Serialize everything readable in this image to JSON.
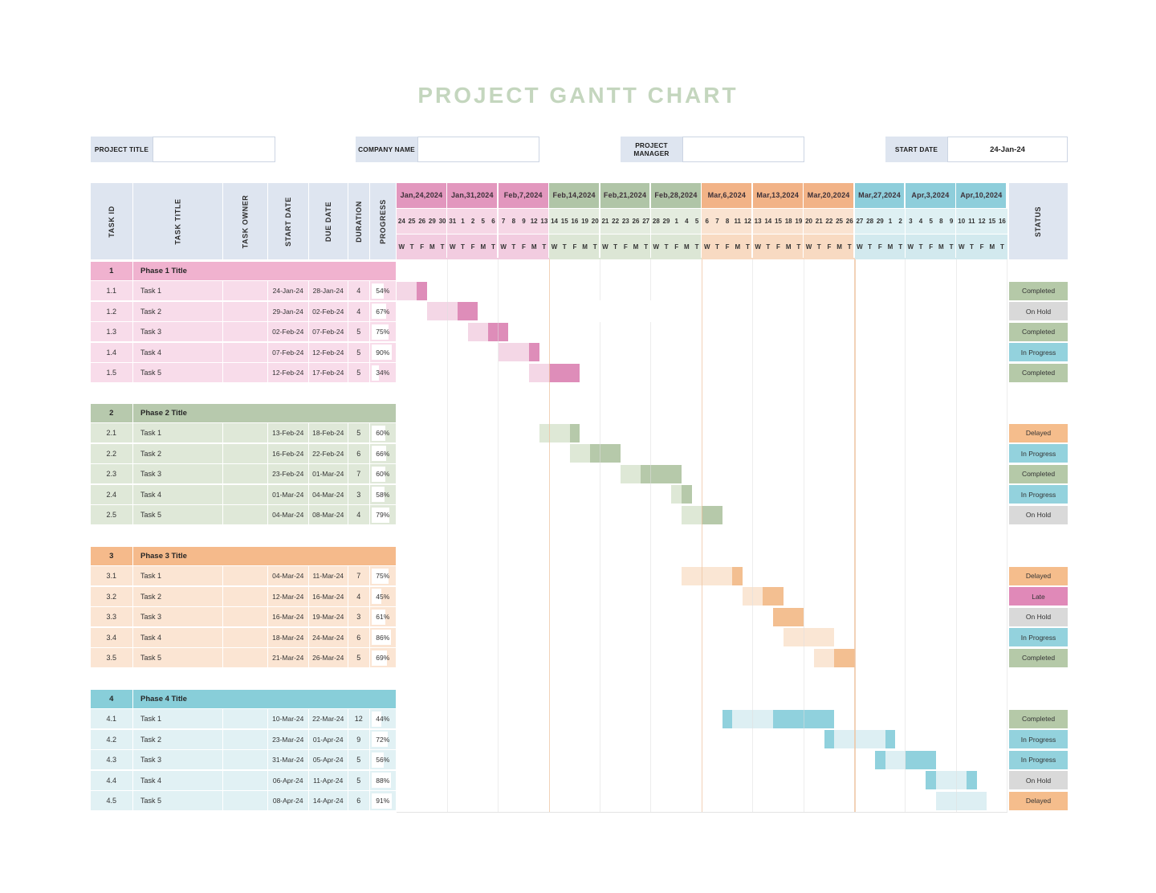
{
  "title": "PROJECT GANTT CHART",
  "info_fields": [
    {
      "label": "PROJECT TITLE",
      "value": ""
    },
    {
      "label": "COMPANY NAME",
      "value": ""
    },
    {
      "label": "PROJECT MANAGER",
      "value": ""
    },
    {
      "label": "START DATE",
      "value": "24-Jan-24"
    }
  ],
  "table": {
    "headers": [
      "TASK ID",
      "TASK TITLE",
      "TASK OWNER",
      "START DATE",
      "DUE DATE",
      "DURATION",
      "PROGRESS"
    ],
    "status_header": "STATUS"
  },
  "timeline": {
    "day_letters": [
      "W",
      "T",
      "F",
      "M",
      "T"
    ],
    "weeks": [
      {
        "label": "Jan,24,2024",
        "days": [
          "24",
          "25",
          "26",
          "29",
          "30"
        ],
        "theme": "pink"
      },
      {
        "label": "Jan,31,2024",
        "days": [
          "31",
          "1",
          "2",
          "5",
          "6"
        ],
        "theme": "pink"
      },
      {
        "label": "Feb,7,2024",
        "days": [
          "7",
          "8",
          "9",
          "12",
          "13"
        ],
        "theme": "pink"
      },
      {
        "label": "Feb,14,2024",
        "days": [
          "14",
          "15",
          "16",
          "19",
          "20"
        ],
        "theme": "green"
      },
      {
        "label": "Feb,21,2024",
        "days": [
          "21",
          "22",
          "23",
          "26",
          "27"
        ],
        "theme": "green"
      },
      {
        "label": "Feb,28,2024",
        "days": [
          "28",
          "29",
          "1",
          "4",
          "5"
        ],
        "theme": "green"
      },
      {
        "label": "Mar,6,2024",
        "days": [
          "6",
          "7",
          "8",
          "11",
          "12"
        ],
        "theme": "orange"
      },
      {
        "label": "Mar,13,2024",
        "days": [
          "13",
          "14",
          "15",
          "18",
          "19"
        ],
        "theme": "orange"
      },
      {
        "label": "Mar,20,2024",
        "days": [
          "20",
          "21",
          "22",
          "25",
          "26"
        ],
        "theme": "orange"
      },
      {
        "label": "Mar,27,2024",
        "days": [
          "27",
          "28",
          "29",
          "1",
          "2"
        ],
        "theme": "teal"
      },
      {
        "label": "Apr,3,2024",
        "days": [
          "3",
          "4",
          "5",
          "8",
          "9"
        ],
        "theme": "teal"
      },
      {
        "label": "Apr,10,2024",
        "days": [
          "10",
          "11",
          "12",
          "15",
          "16"
        ],
        "theme": "teal"
      }
    ]
  },
  "themes": {
    "pink": {
      "week_header": "#e297be",
      "date_row": "#f6d7e6",
      "day_row": "#f2cce0",
      "phase_header": "#f0b2cf",
      "row": "#f8dcea",
      "bar_light": "#f4d7e6",
      "bar_dark": "#de8db9"
    },
    "green": {
      "week_header": "#b0c5a7",
      "date_row": "#e4ecdf",
      "day_row": "#dce6d5",
      "phase_header": "#b7c9ad",
      "row": "#dfe8d8",
      "bar_light": "#dee8d6",
      "bar_dark": "#b6c9aa"
    },
    "orange": {
      "week_header": "#f2b387",
      "date_row": "#fae3d1",
      "day_row": "#f8dac2",
      "phase_header": "#f5ba8b",
      "row": "#fbe5d3",
      "bar_light": "#fae6d4",
      "bar_dark": "#f3bf91"
    },
    "teal": {
      "week_header": "#8ecedb",
      "date_row": "#def0f3",
      "day_row": "#d2e9ee",
      "phase_header": "#88ced9",
      "row": "#e1f1f4",
      "bar_light": "#ddeff3",
      "bar_dark": "#90d1dd"
    }
  },
  "status_colors": {
    "Completed": "#b5c9a8",
    "On Hold": "#d9d9d9",
    "In Progress": "#93d2dd",
    "Delayed": "#f5bd8c",
    "Late": "#e089b8"
  },
  "chart_data": {
    "type": "gantt",
    "x_axis": "workday timeline Jan 24 2024 - Apr 16 2024, 12 weeks x 5 weekdays (W T F M T)",
    "phases": [
      {
        "id": "1",
        "title": "Phase 1 Title",
        "theme": "pink",
        "tasks": [
          {
            "id": "1.1",
            "title": "Task 1",
            "owner": "",
            "start": "24-Jan-24",
            "due": "28-Jan-24",
            "duration": "4",
            "progress": "54%",
            "status": "Completed",
            "bar": [
              [
                0,
                2,
                "light"
              ],
              [
                2,
                1,
                "dark"
              ]
            ]
          },
          {
            "id": "1.2",
            "title": "Task 2",
            "owner": "",
            "start": "29-Jan-24",
            "due": "02-Feb-24",
            "duration": "4",
            "progress": "67%",
            "status": "On Hold",
            "bar": [
              [
                3,
                3,
                "light"
              ],
              [
                6,
                2,
                "dark"
              ]
            ]
          },
          {
            "id": "1.3",
            "title": "Task 3",
            "owner": "",
            "start": "02-Feb-24",
            "due": "07-Feb-24",
            "duration": "5",
            "progress": "75%",
            "status": "Completed",
            "bar": [
              [
                7,
                2,
                "light"
              ],
              [
                9,
                2,
                "dark"
              ]
            ]
          },
          {
            "id": "1.4",
            "title": "Task 4",
            "owner": "",
            "start": "07-Feb-24",
            "due": "12-Feb-24",
            "duration": "5",
            "progress": "90%",
            "status": "In Progress",
            "bar": [
              [
                10,
                3,
                "light"
              ],
              [
                13,
                1,
                "dark"
              ]
            ]
          },
          {
            "id": "1.5",
            "title": "Task 5",
            "owner": "",
            "start": "12-Feb-24",
            "due": "17-Feb-24",
            "duration": "5",
            "progress": "34%",
            "status": "Completed",
            "bar": [
              [
                13,
                2,
                "light"
              ],
              [
                15,
                3,
                "dark"
              ]
            ]
          }
        ]
      },
      {
        "id": "2",
        "title": "Phase 2 Title",
        "theme": "green",
        "tasks": [
          {
            "id": "2.1",
            "title": "Task 1",
            "owner": "",
            "start": "13-Feb-24",
            "due": "18-Feb-24",
            "duration": "5",
            "progress": "60%",
            "status": "Delayed",
            "bar": [
              [
                14,
                3,
                "light"
              ],
              [
                17,
                1,
                "dark"
              ]
            ]
          },
          {
            "id": "2.2",
            "title": "Task 2",
            "owner": "",
            "start": "16-Feb-24",
            "due": "22-Feb-24",
            "duration": "6",
            "progress": "66%",
            "status": "In Progress",
            "bar": [
              [
                17,
                2,
                "light"
              ],
              [
                19,
                3,
                "dark"
              ]
            ]
          },
          {
            "id": "2.3",
            "title": "Task 3",
            "owner": "",
            "start": "23-Feb-24",
            "due": "01-Mar-24",
            "duration": "7",
            "progress": "60%",
            "status": "Completed",
            "bar": [
              [
                22,
                2,
                "light"
              ],
              [
                24,
                4,
                "dark"
              ]
            ]
          },
          {
            "id": "2.4",
            "title": "Task 4",
            "owner": "",
            "start": "01-Mar-24",
            "due": "04-Mar-24",
            "duration": "3",
            "progress": "58%",
            "status": "In Progress",
            "bar": [
              [
                27,
                1,
                "light"
              ],
              [
                28,
                1,
                "dark"
              ]
            ]
          },
          {
            "id": "2.5",
            "title": "Task 5",
            "owner": "",
            "start": "04-Mar-24",
            "due": "08-Mar-24",
            "duration": "4",
            "progress": "79%",
            "status": "On Hold",
            "bar": [
              [
                28,
                2,
                "light"
              ],
              [
                30,
                2,
                "dark"
              ]
            ]
          }
        ]
      },
      {
        "id": "3",
        "title": "Phase 3 Title",
        "theme": "orange",
        "tasks": [
          {
            "id": "3.1",
            "title": "Task 1",
            "owner": "",
            "start": "04-Mar-24",
            "due": "11-Mar-24",
            "duration": "7",
            "progress": "75%",
            "status": "Delayed",
            "bar": [
              [
                28,
                5,
                "light"
              ],
              [
                33,
                1,
                "dark"
              ]
            ]
          },
          {
            "id": "3.2",
            "title": "Task 2",
            "owner": "",
            "start": "12-Mar-24",
            "due": "16-Mar-24",
            "duration": "4",
            "progress": "45%",
            "status": "Late",
            "bar": [
              [
                34,
                2,
                "light"
              ],
              [
                36,
                2,
                "dark"
              ]
            ]
          },
          {
            "id": "3.3",
            "title": "Task 3",
            "owner": "",
            "start": "16-Mar-24",
            "due": "19-Mar-24",
            "duration": "3",
            "progress": "61%",
            "status": "On Hold",
            "bar": [
              [
                37,
                3,
                "dark"
              ]
            ]
          },
          {
            "id": "3.4",
            "title": "Task 4",
            "owner": "",
            "start": "18-Mar-24",
            "due": "24-Mar-24",
            "duration": "6",
            "progress": "86%",
            "status": "In Progress",
            "bar": [
              [
                38,
                5,
                "light"
              ]
            ]
          },
          {
            "id": "3.5",
            "title": "Task 5",
            "owner": "",
            "start": "21-Mar-24",
            "due": "26-Mar-24",
            "duration": "5",
            "progress": "69%",
            "status": "Completed",
            "bar": [
              [
                41,
                2,
                "light"
              ],
              [
                43,
                2,
                "dark"
              ]
            ]
          }
        ]
      },
      {
        "id": "4",
        "title": "Phase 4 Title",
        "theme": "teal",
        "tasks": [
          {
            "id": "4.1",
            "title": "Task 1",
            "owner": "",
            "start": "10-Mar-24",
            "due": "22-Mar-24",
            "duration": "12",
            "progress": "44%",
            "status": "Completed",
            "bar": [
              [
                32,
                1,
                "dark"
              ],
              [
                33,
                4,
                "light"
              ],
              [
                37,
                6,
                "dark"
              ]
            ]
          },
          {
            "id": "4.2",
            "title": "Task 2",
            "owner": "",
            "start": "23-Mar-24",
            "due": "01-Apr-24",
            "duration": "9",
            "progress": "72%",
            "status": "In Progress",
            "bar": [
              [
                42,
                1,
                "dark"
              ],
              [
                43,
                5,
                "light"
              ],
              [
                48,
                1,
                "dark"
              ]
            ]
          },
          {
            "id": "4.3",
            "title": "Task 3",
            "owner": "",
            "start": "31-Mar-24",
            "due": "05-Apr-24",
            "duration": "5",
            "progress": "56%",
            "status": "In Progress",
            "bar": [
              [
                47,
                1,
                "dark"
              ],
              [
                48,
                2,
                "light"
              ],
              [
                50,
                3,
                "dark"
              ]
            ]
          },
          {
            "id": "4.4",
            "title": "Task 4",
            "owner": "",
            "start": "06-Apr-24",
            "due": "11-Apr-24",
            "duration": "5",
            "progress": "88%",
            "status": "On Hold",
            "bar": [
              [
                52,
                1,
                "dark"
              ],
              [
                53,
                3,
                "light"
              ],
              [
                56,
                1,
                "dark"
              ]
            ]
          },
          {
            "id": "4.5",
            "title": "Task 5",
            "owner": "",
            "start": "08-Apr-24",
            "due": "14-Apr-24",
            "duration": "6",
            "progress": "91%",
            "status": "Delayed",
            "bar": [
              [
                53,
                5,
                "light"
              ]
            ]
          }
        ]
      }
    ]
  }
}
